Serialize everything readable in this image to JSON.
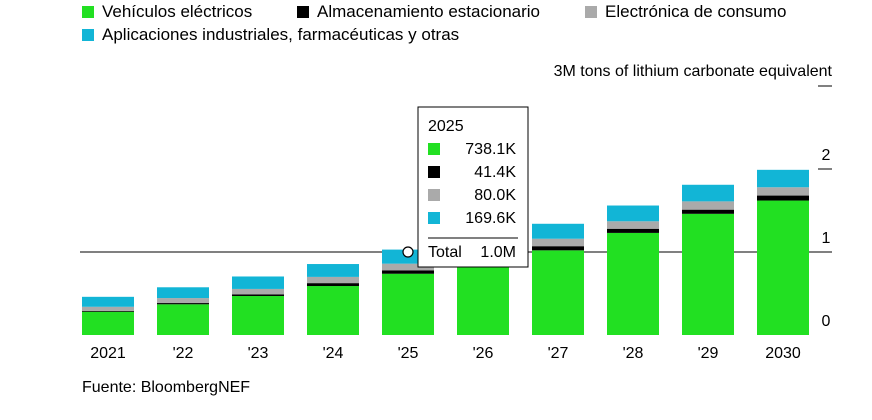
{
  "colors": {
    "ev": "#22e022",
    "storage": "#000000",
    "consumer": "#aaaaaa",
    "industrial": "#12b5d6",
    "axis": "#000000",
    "tooltip_border": "#000000"
  },
  "legend": [
    {
      "label": "Vehículos eléctricos",
      "color": "#22e022"
    },
    {
      "label": "Almacenamiento estacionario",
      "color": "#000000"
    },
    {
      "label": "Electrónica de consumo",
      "color": "#aaaaaa"
    },
    {
      "label": "Aplicaciones industriales, farmacéuticas y otras",
      "color": "#12b5d6"
    }
  ],
  "source": "Fuente: BloombergNEF",
  "tooltip": {
    "year": "2025",
    "rows": [
      {
        "value": "738.1K",
        "color": "#22e022"
      },
      {
        "value": "41.4K",
        "color": "#000000"
      },
      {
        "value": "80.0K",
        "color": "#aaaaaa"
      },
      {
        "value": "169.6K",
        "color": "#12b5d6"
      }
    ],
    "total_label": "Total",
    "total_value": "1.0M",
    "hover_category": "'25"
  },
  "chart_data": {
    "type": "bar",
    "stacked": true,
    "categories": [
      "2021",
      "'22",
      "'23",
      "'24",
      "'25",
      "'26",
      "'27",
      "'28",
      "'29",
      "2030"
    ],
    "series": [
      {
        "name": "Vehículos eléctricos",
        "color": "#22e022",
        "values": [
          0.28,
          0.37,
          0.47,
          0.59,
          0.738,
          0.88,
          1.02,
          1.23,
          1.46,
          1.62
        ]
      },
      {
        "name": "Almacenamiento estacionario",
        "color": "#000000",
        "values": [
          0.01,
          0.015,
          0.02,
          0.035,
          0.0414,
          0.045,
          0.05,
          0.05,
          0.05,
          0.06
        ]
      },
      {
        "name": "Electrónica de consumo",
        "color": "#aaaaaa",
        "values": [
          0.05,
          0.06,
          0.065,
          0.075,
          0.08,
          0.085,
          0.09,
          0.09,
          0.1,
          0.1
        ]
      },
      {
        "name": "Aplicaciones industriales, farmacéuticas y otras",
        "color": "#12b5d6",
        "values": [
          0.12,
          0.13,
          0.15,
          0.155,
          0.1696,
          0.17,
          0.18,
          0.19,
          0.2,
          0.21
        ]
      }
    ],
    "ylabel": "3M tons of lithium carbonate equivalent",
    "ylim": [
      0,
      3
    ],
    "y_ticks": [
      {
        "value": 0,
        "label": "0"
      },
      {
        "value": 1,
        "label": "1"
      },
      {
        "value": 2,
        "label": "2"
      },
      {
        "value": 3,
        "label": ""
      }
    ],
    "reference_line": 1,
    "legend_position": "top-left",
    "grid": false
  }
}
